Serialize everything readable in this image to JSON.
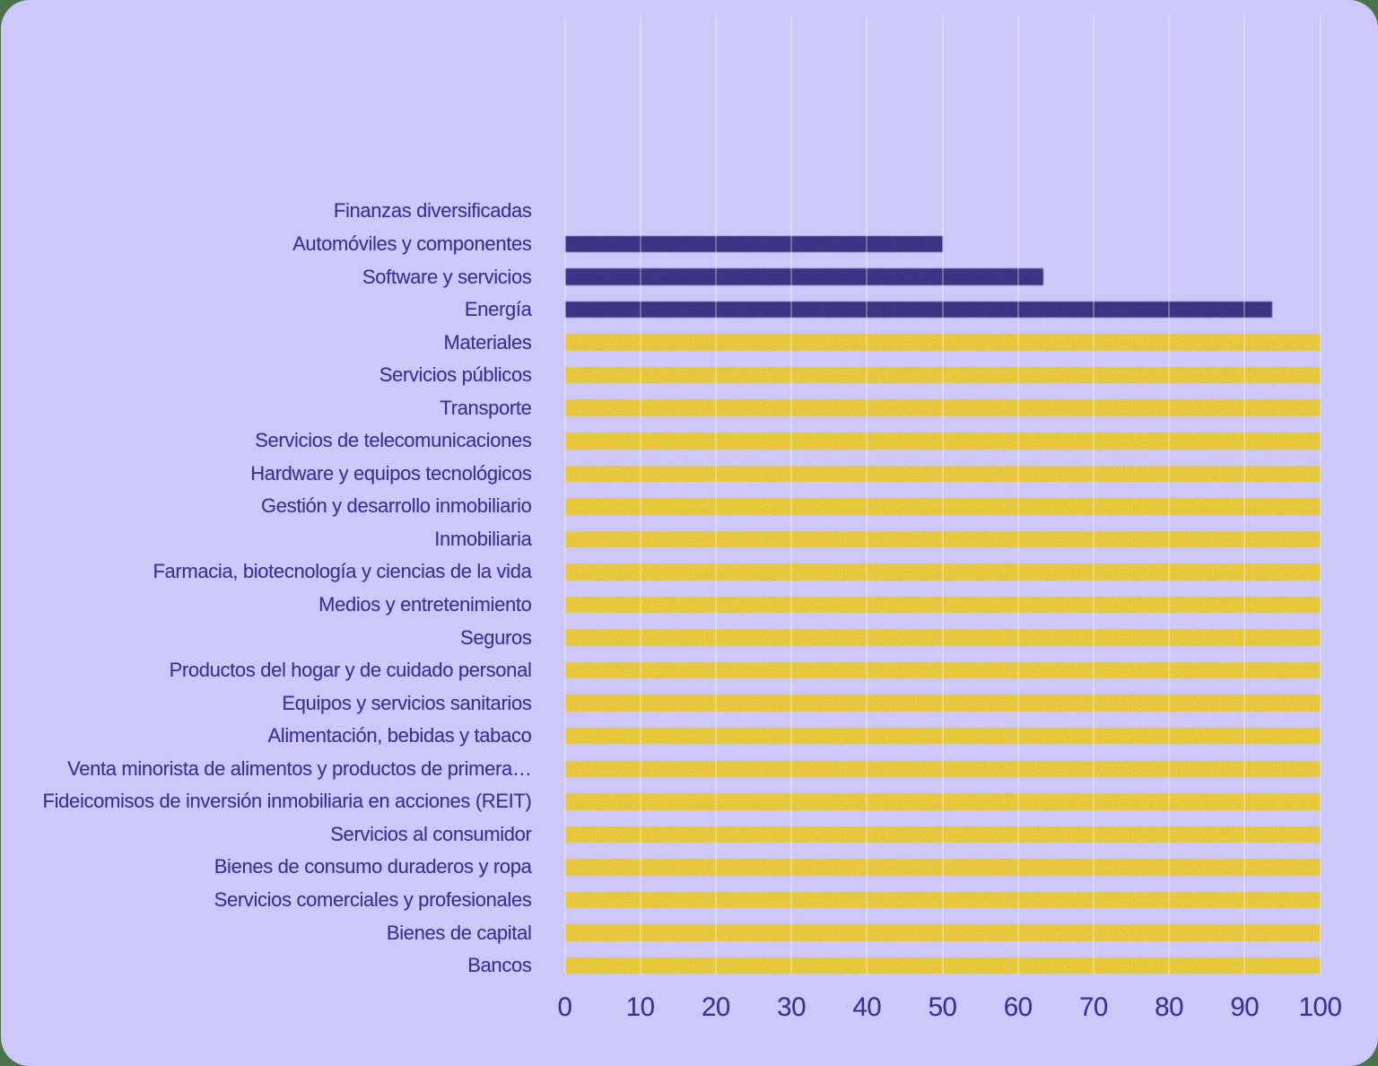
{
  "chart_data": {
    "type": "bar",
    "orientation": "horizontal",
    "title": "",
    "xlabel": "",
    "ylabel": "",
    "categories": [
      "Finanzas diversificadas",
      "Automóviles y componentes",
      "Software y servicios",
      "Energía",
      "Materiales",
      "Servicios públicos",
      "Transporte",
      "Servicios de telecomunicaciones",
      "Hardware y equipos tecnológicos",
      "Gestión y desarrollo inmobiliario",
      "Inmobiliaria",
      "Farmacia, biotecnología y ciencias de la vida",
      "Medios y entretenimiento",
      "Seguros",
      "Productos del hogar y de cuidado personal",
      "Equipos y servicios sanitarios",
      "Alimentación, bebidas y tabaco",
      "Venta minorista de alimentos y productos de primera…",
      "Fideicomisos de inversión inmobiliaria en acciones (REIT)",
      "Servicios al consumidor",
      "Bienes de consumo duraderos y ropa",
      "Servicios comerciales y profesionales",
      "Bienes de capital",
      "Bancos"
    ],
    "values": [
      0,
      50,
      63.4,
      93.7,
      100,
      100,
      100,
      100,
      100,
      100,
      100,
      100,
      100,
      100,
      100,
      100,
      100,
      100,
      100,
      100,
      100,
      100,
      100,
      100
    ],
    "bar_colors": [
      "#3e3084",
      "#3e3084",
      "#3e3084",
      "#3e3084",
      "#e7c73d",
      "#e7c73d",
      "#e7c73d",
      "#e7c73d",
      "#e7c73d",
      "#e7c73d",
      "#e7c73d",
      "#e7c73d",
      "#e7c73d",
      "#e7c73d",
      "#e7c73d",
      "#e7c73d",
      "#e7c73d",
      "#e7c73d",
      "#e7c73d",
      "#e7c73d",
      "#e7c73d",
      "#e7c73d",
      "#e7c73d",
      "#e7c73d"
    ],
    "xlim": [
      0,
      100
    ],
    "xticks": [
      0,
      10,
      20,
      30,
      40,
      50,
      60,
      70,
      80,
      90,
      100
    ],
    "grid": true,
    "legend": false
  },
  "colors": {
    "page_background": "#4b7249",
    "card_background": "#cec7fa",
    "text": "#3e3090",
    "gridline": "rgba(255,255,255,0.29)",
    "bar_dark": "#3e3084",
    "bar_yellow": "#e7c73d"
  }
}
